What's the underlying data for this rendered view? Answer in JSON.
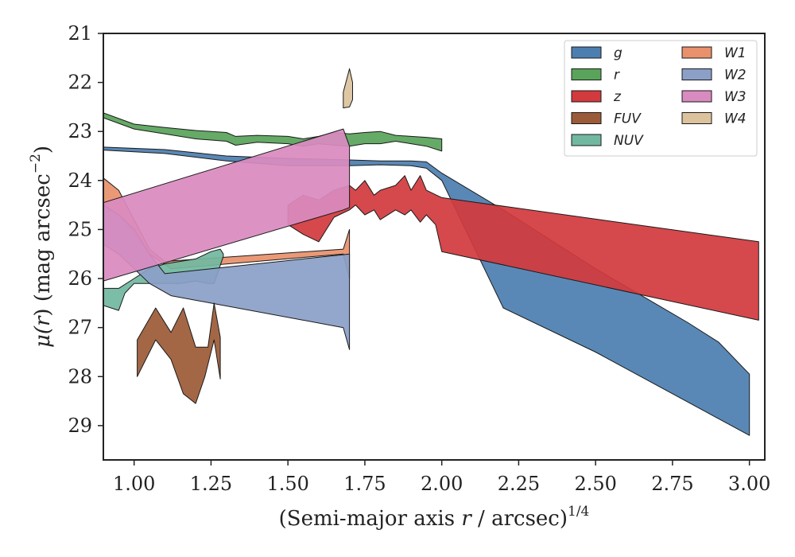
{
  "chart_data": {
    "type": "area",
    "title": "",
    "xlabel_main": "(Semi-major axis ",
    "xlabel_var": "r",
    "xlabel_tail": " / arcsec)",
    "xlabel_exp": "1/4",
    "ylabel_mu": "μ(",
    "ylabel_var": "r",
    "ylabel_tail": ") (mag arcsec",
    "ylabel_exp": "−2",
    "ylabel_close": ")",
    "xlim": [
      0.9,
      3.05
    ],
    "ylim": [
      29.7,
      21.0
    ],
    "y_inverted": true,
    "xticks": [
      1.0,
      1.25,
      1.5,
      1.75,
      2.0,
      2.25,
      2.5,
      2.75,
      3.0
    ],
    "xtick_labels": [
      "1.00",
      "1.25",
      "1.50",
      "1.75",
      "2.00",
      "2.25",
      "2.50",
      "2.75",
      "3.00"
    ],
    "yticks": [
      21,
      22,
      23,
      24,
      25,
      26,
      27,
      28,
      29
    ],
    "ytick_labels": [
      "21",
      "22",
      "23",
      "24",
      "25",
      "26",
      "27",
      "28",
      "29"
    ],
    "legend_position": "top-right",
    "series": [
      {
        "key": "W1",
        "name": "W1",
        "color": "#e8916c",
        "upper": [
          [
            0.9,
            23.95
          ],
          [
            0.95,
            24.2
          ],
          [
            1.0,
            24.8
          ],
          [
            1.05,
            25.4
          ],
          [
            1.1,
            25.65
          ],
          [
            1.68,
            25.4
          ],
          [
            1.7,
            25.0
          ]
        ],
        "lower": [
          [
            1.7,
            26.0
          ],
          [
            1.68,
            25.5
          ],
          [
            1.12,
            25.8
          ],
          [
            1.05,
            25.5
          ],
          [
            1.0,
            25.1
          ],
          [
            0.95,
            24.7
          ],
          [
            0.9,
            24.6
          ]
        ]
      },
      {
        "key": "NUV",
        "name": "NUV",
        "color": "#72b8a0",
        "upper": [
          [
            0.9,
            26.2
          ],
          [
            0.95,
            26.2
          ],
          [
            1.0,
            26.0
          ],
          [
            1.05,
            25.8
          ],
          [
            1.1,
            25.7
          ],
          [
            1.2,
            25.6
          ],
          [
            1.25,
            25.45
          ],
          [
            1.28,
            25.4
          ],
          [
            1.29,
            25.5
          ]
        ],
        "lower": [
          [
            1.29,
            25.55
          ],
          [
            1.26,
            26.1
          ],
          [
            1.24,
            26.1
          ],
          [
            1.2,
            26.05
          ],
          [
            1.15,
            26.1
          ],
          [
            1.1,
            26.1
          ],
          [
            1.05,
            26.1
          ],
          [
            1.0,
            26.1
          ],
          [
            0.97,
            26.3
          ],
          [
            0.95,
            26.65
          ],
          [
            0.9,
            26.55
          ]
        ]
      },
      {
        "key": "g",
        "name": "g",
        "color": "#4c7fb0",
        "upper": [
          [
            0.9,
            23.32
          ],
          [
            1.1,
            23.37
          ],
          [
            1.3,
            23.5
          ],
          [
            1.5,
            23.55
          ],
          [
            1.7,
            23.58
          ],
          [
            1.8,
            23.6
          ],
          [
            1.9,
            23.6
          ],
          [
            1.95,
            23.62
          ],
          [
            2.0,
            23.85
          ],
          [
            2.2,
            24.6
          ],
          [
            2.5,
            25.8
          ],
          [
            2.8,
            26.9
          ],
          [
            2.9,
            27.3
          ],
          [
            3.0,
            27.95
          ]
        ],
        "lower": [
          [
            3.0,
            29.2
          ],
          [
            2.5,
            27.5
          ],
          [
            2.2,
            26.6
          ],
          [
            2.0,
            24.0
          ],
          [
            1.95,
            23.75
          ],
          [
            1.9,
            23.7
          ],
          [
            1.8,
            23.68
          ],
          [
            1.7,
            23.7
          ],
          [
            1.5,
            23.7
          ],
          [
            1.3,
            23.6
          ],
          [
            1.1,
            23.45
          ],
          [
            0.9,
            23.38
          ]
        ]
      },
      {
        "key": "r",
        "name": "r",
        "color": "#59a45a",
        "upper": [
          [
            0.9,
            22.62
          ],
          [
            1.0,
            22.85
          ],
          [
            1.1,
            22.92
          ],
          [
            1.2,
            22.98
          ],
          [
            1.3,
            23.02
          ],
          [
            1.33,
            23.1
          ],
          [
            1.4,
            23.08
          ],
          [
            1.5,
            23.1
          ],
          [
            1.55,
            23.15
          ],
          [
            1.6,
            23.1
          ],
          [
            1.65,
            23.02
          ],
          [
            1.7,
            23.05
          ],
          [
            1.75,
            23.02
          ],
          [
            1.8,
            23.0
          ],
          [
            1.85,
            23.08
          ],
          [
            1.9,
            23.1
          ],
          [
            1.95,
            23.12
          ],
          [
            2.0,
            23.15
          ]
        ],
        "lower": [
          [
            2.0,
            23.4
          ],
          [
            1.95,
            23.3
          ],
          [
            1.9,
            23.25
          ],
          [
            1.85,
            23.2
          ],
          [
            1.8,
            23.25
          ],
          [
            1.75,
            23.25
          ],
          [
            1.7,
            23.3
          ],
          [
            1.65,
            23.28
          ],
          [
            1.6,
            23.25
          ],
          [
            1.55,
            23.3
          ],
          [
            1.5,
            23.25
          ],
          [
            1.4,
            23.22
          ],
          [
            1.33,
            23.28
          ],
          [
            1.3,
            23.2
          ],
          [
            1.2,
            23.15
          ],
          [
            1.1,
            23.05
          ],
          [
            1.0,
            22.95
          ],
          [
            0.9,
            22.72
          ]
        ]
      },
      {
        "key": "W2",
        "name": "W2",
        "color": "#8b9fc7",
        "upper": [
          [
            0.9,
            24.5
          ],
          [
            0.95,
            24.7
          ],
          [
            1.0,
            25.0
          ],
          [
            1.05,
            25.5
          ],
          [
            1.1,
            25.9
          ],
          [
            1.7,
            25.5
          ],
          [
            1.7,
            26.5
          ]
        ],
        "lower": [
          [
            1.7,
            27.45
          ],
          [
            1.68,
            27.0
          ],
          [
            1.12,
            26.35
          ],
          [
            1.05,
            26.1
          ],
          [
            1.0,
            25.8
          ],
          [
            0.95,
            25.5
          ],
          [
            0.9,
            25.3
          ]
        ]
      },
      {
        "key": "z",
        "name": "z",
        "color": "#d23a3e",
        "upper": [
          [
            1.5,
            24.5
          ],
          [
            1.55,
            24.3
          ],
          [
            1.6,
            24.4
          ],
          [
            1.65,
            24.2
          ],
          [
            1.7,
            24.1
          ],
          [
            1.72,
            24.2
          ],
          [
            1.75,
            24.0
          ],
          [
            1.78,
            24.3
          ],
          [
            1.8,
            24.2
          ],
          [
            1.85,
            24.1
          ],
          [
            1.88,
            23.9
          ],
          [
            1.9,
            24.2
          ],
          [
            1.93,
            23.9
          ],
          [
            1.95,
            24.2
          ],
          [
            2.0,
            24.35
          ],
          [
            3.03,
            25.25
          ]
        ],
        "lower": [
          [
            3.03,
            26.85
          ],
          [
            2.0,
            25.45
          ],
          [
            1.98,
            24.9
          ],
          [
            1.95,
            24.7
          ],
          [
            1.93,
            24.85
          ],
          [
            1.9,
            24.6
          ],
          [
            1.88,
            24.7
          ],
          [
            1.85,
            24.6
          ],
          [
            1.8,
            24.8
          ],
          [
            1.78,
            24.6
          ],
          [
            1.75,
            24.7
          ],
          [
            1.72,
            24.5
          ],
          [
            1.7,
            24.6
          ],
          [
            1.65,
            24.75
          ],
          [
            1.6,
            25.25
          ],
          [
            1.55,
            25.1
          ],
          [
            1.5,
            24.9
          ]
        ]
      },
      {
        "key": "W3",
        "name": "W3",
        "color": "#d98bbf",
        "upper": [
          [
            0.9,
            24.45
          ],
          [
            1.68,
            22.95
          ],
          [
            1.7,
            23.3
          ],
          [
            1.7,
            24.55
          ]
        ],
        "lower": [
          [
            1.68,
            24.6
          ],
          [
            0.9,
            26.05
          ]
        ]
      },
      {
        "key": "FUV",
        "name": "FUV",
        "color": "#9c5b38",
        "upper": [
          [
            1.01,
            27.25
          ],
          [
            1.07,
            26.6
          ],
          [
            1.12,
            27.1
          ],
          [
            1.16,
            26.6
          ],
          [
            1.2,
            27.4
          ],
          [
            1.24,
            27.4
          ],
          [
            1.26,
            26.5
          ],
          [
            1.28,
            27.2
          ]
        ],
        "lower": [
          [
            1.28,
            28.05
          ],
          [
            1.26,
            27.25
          ],
          [
            1.23,
            28.0
          ],
          [
            1.2,
            28.55
          ],
          [
            1.16,
            28.35
          ],
          [
            1.12,
            27.65
          ],
          [
            1.07,
            27.25
          ],
          [
            1.01,
            28.0
          ]
        ]
      },
      {
        "key": "W4",
        "name": "W4",
        "color": "#dcc39d",
        "upper": [
          [
            1.68,
            22.2
          ],
          [
            1.7,
            21.72
          ],
          [
            1.71,
            22.0
          ],
          [
            1.71,
            22.35
          ]
        ],
        "lower": [
          [
            1.7,
            22.5
          ],
          [
            1.68,
            22.52
          ]
        ]
      }
    ],
    "legend": [
      {
        "key": "g",
        "label": "g",
        "color": "#4c7fb0"
      },
      {
        "key": "r",
        "label": "r",
        "color": "#59a45a"
      },
      {
        "key": "z",
        "label": "z",
        "color": "#d23a3e"
      },
      {
        "key": "FUV",
        "label": "FUV",
        "color": "#9c5b38"
      },
      {
        "key": "NUV",
        "label": "NUV",
        "color": "#72b8a0"
      },
      {
        "key": "W1",
        "label": "W1",
        "color": "#e8916c"
      },
      {
        "key": "W2",
        "label": "W2",
        "color": "#8b9fc7"
      },
      {
        "key": "W3",
        "label": "W3",
        "color": "#d98bbf"
      },
      {
        "key": "W4",
        "label": "W4",
        "color": "#dcc39d"
      }
    ]
  }
}
